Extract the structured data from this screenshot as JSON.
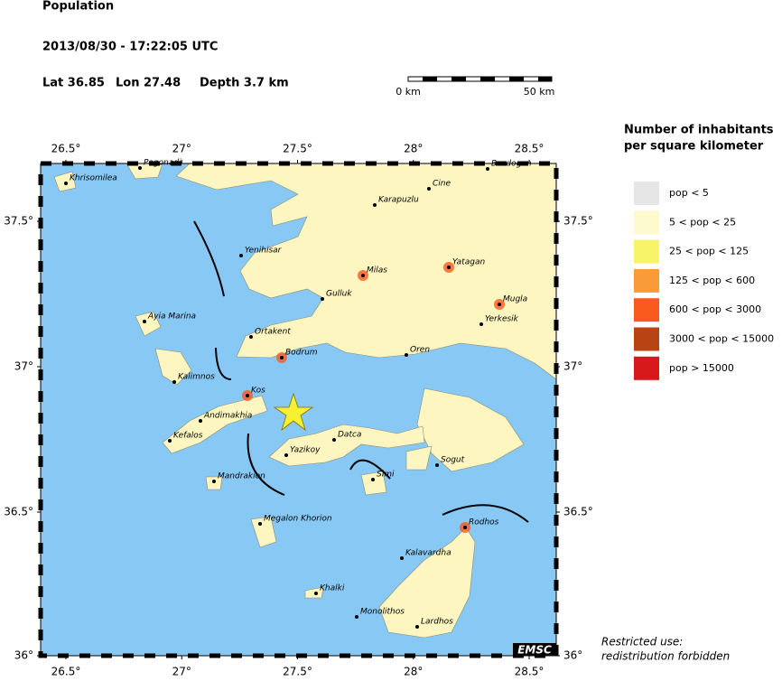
{
  "header": {
    "title": "Population",
    "datetime": "2013/08/30 - 17:22:05 UTC",
    "lat": "Lat 36.85",
    "lon": "Lon 27.48",
    "depth": "Depth 3.7 km"
  },
  "scale_bar": {
    "start": "0 km",
    "end": "50 km"
  },
  "legend": {
    "title": [
      "Number of inhabitants",
      "per square kilometer"
    ],
    "items": [
      {
        "label": "pop < 5",
        "color": "#e6e6e6"
      },
      {
        "label": "5 < pop < 25",
        "color": "#fdfbcd"
      },
      {
        "label": "25 < pop < 125",
        "color": "#f8f46a"
      },
      {
        "label": "125 < pop < 600",
        "color": "#f99b38"
      },
      {
        "label": "600 < pop < 3000",
        "color": "#fa5a1e"
      },
      {
        "label": "3000 < pop < 15000",
        "color": "#b84413"
      },
      {
        "label": "pop > 15000",
        "color": "#d7191c"
      }
    ]
  },
  "map": {
    "lon_ticks": [
      {
        "value": 26.5,
        "label": "26.5°"
      },
      {
        "value": 27,
        "label": "27°"
      },
      {
        "value": 27.5,
        "label": "27.5°"
      },
      {
        "value": 28,
        "label": "28°"
      },
      {
        "value": 28.5,
        "label": "28.5°"
      }
    ],
    "lat_ticks": [
      {
        "value": 37.5,
        "label": "37.5°"
      },
      {
        "value": 37,
        "label": "37°"
      },
      {
        "value": 36.5,
        "label": "36.5°"
      },
      {
        "value": 36,
        "label": "36°"
      }
    ],
    "cities": [
      "Khrisomilea",
      "Pagonadi",
      "Bozdogan",
      "Cine",
      "Karapuzlu",
      "Yenihisar",
      "Milas",
      "Yatagan",
      "Mugla",
      "Gulluk",
      "Ayia Marina",
      "Ortakent",
      "Yerkesik",
      "Bodrum",
      "Oren",
      "Kalimnos",
      "Kos",
      "Andimakhia",
      "Kefalos",
      "Datca",
      "Yazikoy",
      "Sogut",
      "Mandrakion",
      "Simi",
      "Megalon Khorion",
      "Rodhos",
      "Kalavardha",
      "Khalki",
      "Monolithos",
      "Lardhos"
    ],
    "credit": "EMSC"
  },
  "footer": [
    "Restricted use:",
    "redistribution forbidden"
  ]
}
